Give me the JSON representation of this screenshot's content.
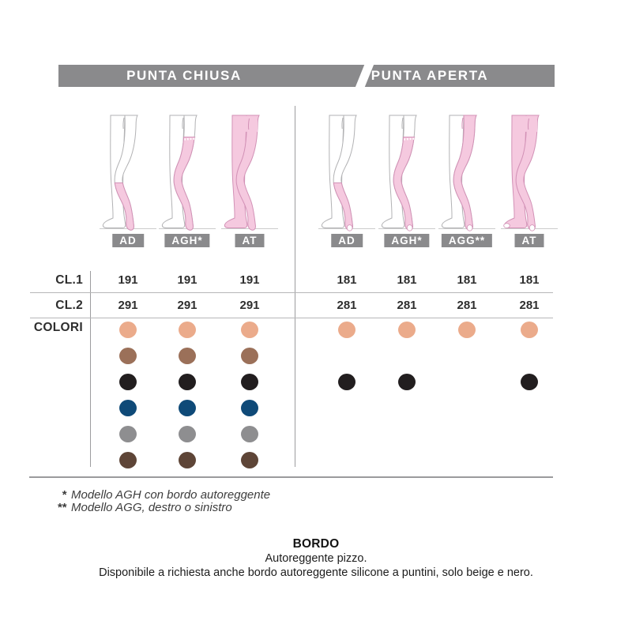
{
  "header": {
    "left": "PUNTA CHIUSA",
    "right": "PUNTA APERTA",
    "bar_color": "#8a8a8c"
  },
  "row_labels": {
    "cl1": "CL.1",
    "cl2": "CL.2",
    "colori": "COLORI"
  },
  "palette_order": [
    "beige",
    "brown",
    "black",
    "navy",
    "gray",
    "darkbrown"
  ],
  "palette": {
    "beige": "#ebab8b",
    "brown": "#9b7059",
    "black": "#221e1f",
    "navy": "#0f4a78",
    "gray": "#8e8e90",
    "darkbrown": "#5e4537"
  },
  "figure_colors": {
    "stocking": "#f5c9df",
    "stocking_line": "#d291b6",
    "skin_line": "#b2b2b4"
  },
  "groups": [
    {
      "name": "punta-chiusa",
      "open_toe": false,
      "columns": [
        {
          "model": "AD",
          "label": "AD",
          "cl1": "191",
          "cl2": "291",
          "colors": [
            "beige",
            "brown",
            "black",
            "navy",
            "gray",
            "darkbrown"
          ]
        },
        {
          "model": "AGH",
          "label": "AGH*",
          "cl1": "191",
          "cl2": "291",
          "colors": [
            "beige",
            "brown",
            "black",
            "navy",
            "gray",
            "darkbrown"
          ]
        },
        {
          "model": "AT",
          "label": "AT",
          "cl1": "191",
          "cl2": "291",
          "colors": [
            "beige",
            "brown",
            "black",
            "navy",
            "gray",
            "darkbrown"
          ]
        }
      ]
    },
    {
      "name": "punta-aperta",
      "open_toe": true,
      "columns": [
        {
          "model": "AD",
          "label": "AD",
          "cl1": "181",
          "cl2": "281",
          "colors": [
            "beige",
            "black"
          ]
        },
        {
          "model": "AGH",
          "label": "AGH*",
          "cl1": "181",
          "cl2": "281",
          "colors": [
            "beige",
            "black"
          ]
        },
        {
          "model": "AGG",
          "label": "AGG**",
          "cl1": "181",
          "cl2": "281",
          "colors": [
            "beige"
          ]
        },
        {
          "model": "AT",
          "label": "AT",
          "cl1": "181",
          "cl2": "281",
          "colors": [
            "beige",
            "black"
          ]
        }
      ]
    }
  ],
  "footnotes": [
    {
      "marker": "*",
      "text": "Modello AGH con bordo autoreggente"
    },
    {
      "marker": "**",
      "text": "Modello AGG, destro o sinistro"
    }
  ],
  "bordo": {
    "title": "BORDO",
    "line1": "Autoreggente pizzo.",
    "line2": "Disponibile a richiesta anche bordo autoreggente silicone a puntini, solo beige e nero."
  }
}
